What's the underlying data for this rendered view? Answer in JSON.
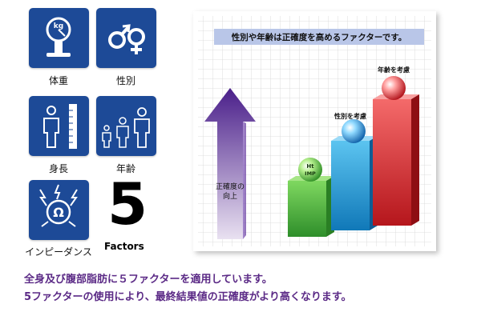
{
  "factors": {
    "weight_label": "体重",
    "weight_icon_text": "kg",
    "gender_label": "性別",
    "height_label": "身長",
    "age_label": "年齢",
    "impedance_label": "インピーダンス",
    "five_number": "5",
    "five_caption": "Factors"
  },
  "chart": {
    "title": "性別や年齢は正確度を高めるファクターです。",
    "arrow_label_line1": "正確度の",
    "arrow_label_line2": "向上",
    "bar1_badge_line1": "Ht",
    "bar1_badge_line2": "IMP",
    "bar2_label": "性別を考慮",
    "bar3_label": "年齢を考慮"
  },
  "colors": {
    "tile_blue": "#1d4a97",
    "arrow_purple": "#6a3aa0",
    "bar_green": "#4caf3f",
    "bar_blue": "#1e9ad6",
    "bar_red": "#d9262e",
    "footer_purple": "#5b2a86",
    "title_bg": "#b9c6e8"
  },
  "footer": {
    "line1": "全身及び腹部脂肪に５ファクターを適用しています。",
    "line2": "5ファクターの使用により、最終結果値の正確度がより高くなります。"
  }
}
